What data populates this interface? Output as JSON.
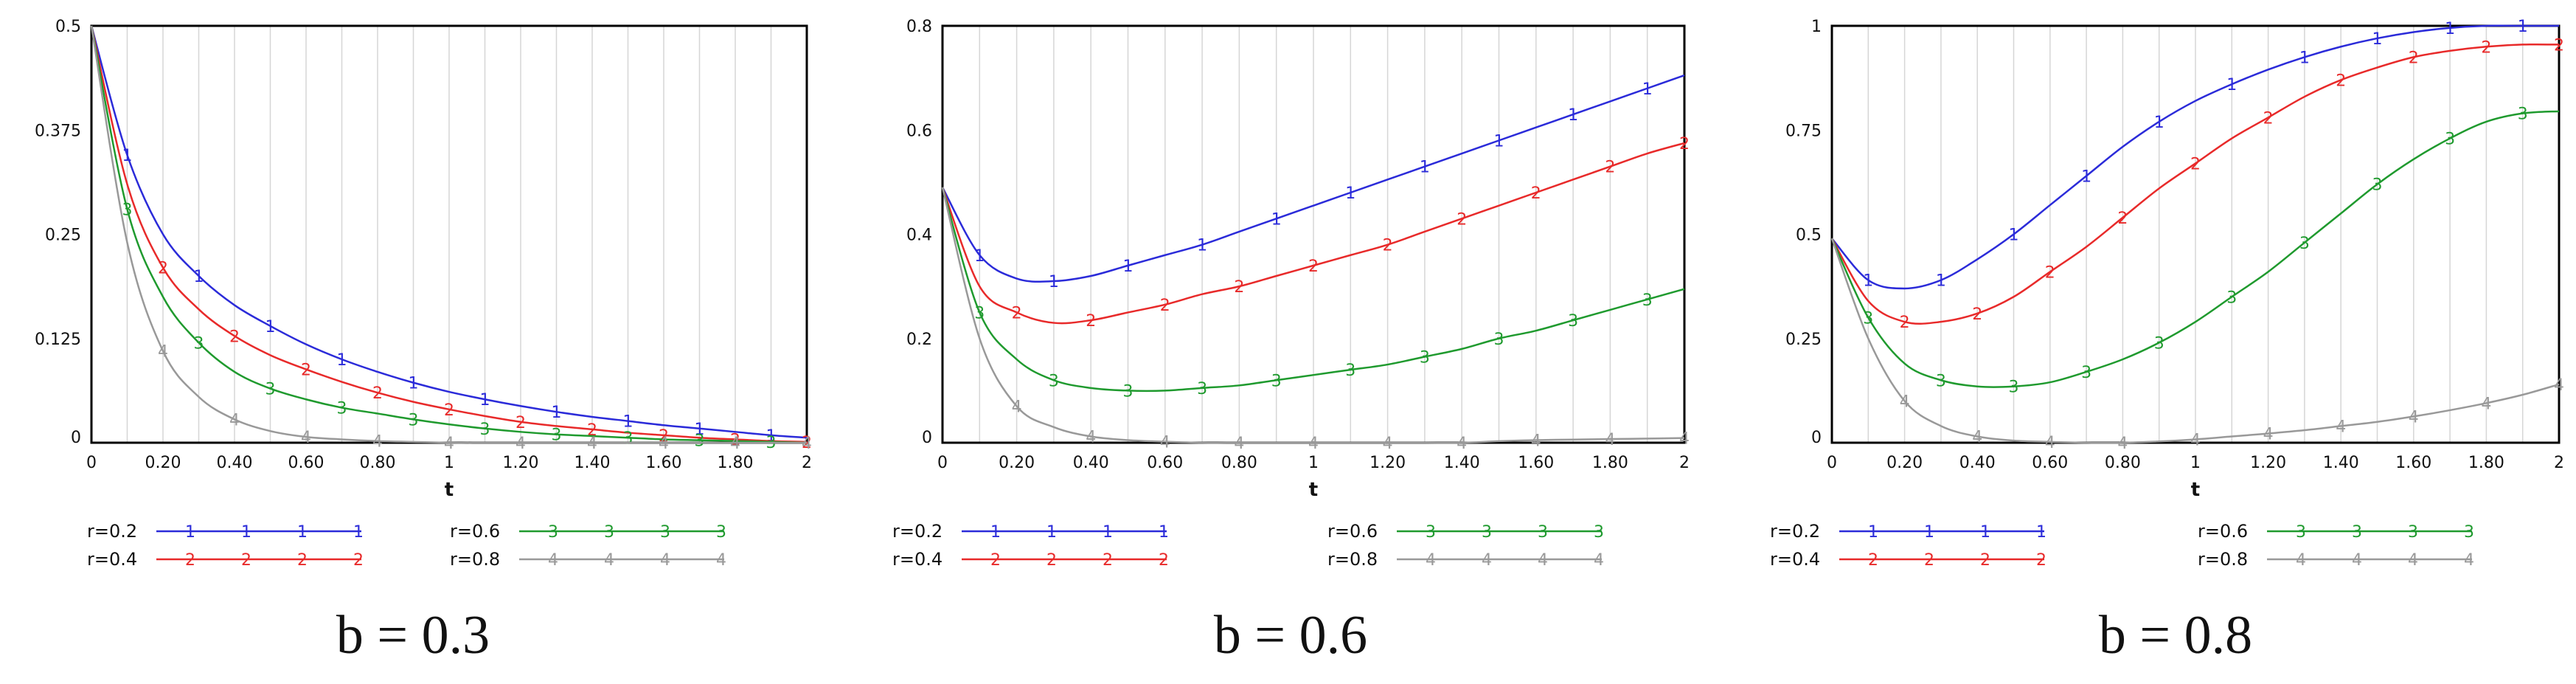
{
  "chart_data": [
    {
      "type": "line",
      "caption": "b = 0.3",
      "xlabel": "t",
      "xlim": [
        0,
        2
      ],
      "ylim": [
        0,
        0.5
      ],
      "x_ticks": [
        "0",
        "0.20",
        "0.40",
        "0.60",
        "0.80",
        "1",
        "1.20",
        "1.40",
        "1.60",
        "1.80",
        "2"
      ],
      "y_ticks": [
        "0",
        "0.125",
        "0.25",
        "0.375",
        "0.5"
      ],
      "x": [
        0,
        0.1,
        0.2,
        0.3,
        0.4,
        0.5,
        0.6,
        0.7,
        0.8,
        0.9,
        1.0,
        1.1,
        1.2,
        1.3,
        1.4,
        1.5,
        1.6,
        1.7,
        1.8,
        1.9,
        2.0
      ],
      "series": [
        {
          "name": "r=0.2",
          "marker": "1",
          "color": "#2b2bd9",
          "values": [
            0.5,
            0.345,
            0.25,
            0.2,
            0.165,
            0.14,
            0.118,
            0.1,
            0.085,
            0.072,
            0.061,
            0.052,
            0.044,
            0.037,
            0.031,
            0.026,
            0.021,
            0.017,
            0.013,
            0.009,
            0.006
          ]
        },
        {
          "name": "r=0.4",
          "marker": "2",
          "color": "#e82a2a",
          "values": [
            0.5,
            0.31,
            0.21,
            0.16,
            0.128,
            0.105,
            0.088,
            0.073,
            0.06,
            0.049,
            0.04,
            0.032,
            0.025,
            0.02,
            0.016,
            0.012,
            0.009,
            0.006,
            0.004,
            0.002,
            0.001
          ]
        },
        {
          "name": "r=0.6",
          "marker": "3",
          "color": "#1f9a2e",
          "values": [
            0.5,
            0.28,
            0.175,
            0.12,
            0.085,
            0.065,
            0.052,
            0.042,
            0.035,
            0.028,
            0.022,
            0.017,
            0.013,
            0.01,
            0.008,
            0.006,
            0.004,
            0.003,
            0.002,
            0.001,
            0.0
          ]
        },
        {
          "name": "r=0.8",
          "marker": "4",
          "color": "#999999",
          "values": [
            0.5,
            0.24,
            0.11,
            0.055,
            0.028,
            0.014,
            0.007,
            0.004,
            0.002,
            0.001,
            0.0,
            0.0,
            0.0,
            0.0,
            0.0,
            0.0,
            0.0,
            0.0,
            0.0,
            0.0,
            0.0
          ]
        }
      ]
    },
    {
      "type": "line",
      "caption": "b = 0.6",
      "xlabel": "t",
      "xlim": [
        0,
        2
      ],
      "ylim": [
        0,
        0.8
      ],
      "x_ticks": [
        "0",
        "0.20",
        "0.40",
        "0.60",
        "0.80",
        "1",
        "1.20",
        "1.40",
        "1.60",
        "1.80",
        "2"
      ],
      "y_ticks": [
        "0",
        "0.2",
        "0.4",
        "0.6",
        "0.8"
      ],
      "x": [
        0,
        0.1,
        0.2,
        0.3,
        0.4,
        0.5,
        0.6,
        0.7,
        0.8,
        0.9,
        1.0,
        1.1,
        1.2,
        1.3,
        1.4,
        1.5,
        1.6,
        1.7,
        1.8,
        1.9,
        2.0
      ],
      "series": [
        {
          "name": "r=0.2",
          "marker": "1",
          "color": "#2b2bd9",
          "values": [
            0.49,
            0.36,
            0.315,
            0.31,
            0.32,
            0.34,
            0.36,
            0.38,
            0.405,
            0.43,
            0.455,
            0.48,
            0.505,
            0.53,
            0.555,
            0.58,
            0.605,
            0.63,
            0.655,
            0.68,
            0.705
          ]
        },
        {
          "name": "r=0.4",
          "marker": "2",
          "color": "#e82a2a",
          "values": [
            0.49,
            0.3,
            0.25,
            0.23,
            0.235,
            0.25,
            0.265,
            0.285,
            0.3,
            0.32,
            0.34,
            0.36,
            0.38,
            0.405,
            0.43,
            0.455,
            0.48,
            0.505,
            0.53,
            0.555,
            0.575
          ]
        },
        {
          "name": "r=0.6",
          "marker": "3",
          "color": "#1f9a2e",
          "values": [
            0.49,
            0.25,
            0.16,
            0.12,
            0.105,
            0.1,
            0.1,
            0.105,
            0.11,
            0.12,
            0.13,
            0.14,
            0.15,
            0.165,
            0.18,
            0.2,
            0.215,
            0.235,
            0.255,
            0.275,
            0.295
          ]
        },
        {
          "name": "r=0.8",
          "marker": "4",
          "color": "#999999",
          "values": [
            0.49,
            0.2,
            0.07,
            0.03,
            0.012,
            0.005,
            0.002,
            0.0,
            0.0,
            0.0,
            0.0,
            0.0,
            0.0,
            0.0,
            0.0,
            0.003,
            0.005,
            0.006,
            0.007,
            0.008,
            0.009
          ]
        }
      ]
    },
    {
      "type": "line",
      "caption": "b = 0.8",
      "xlabel": "t",
      "xlim": [
        0,
        2
      ],
      "ylim": [
        0,
        1
      ],
      "x_ticks": [
        "0",
        "0.20",
        "0.40",
        "0.60",
        "0.80",
        "1",
        "1.20",
        "1.40",
        "1.60",
        "1.80",
        "2"
      ],
      "y_ticks": [
        "0",
        "0.25",
        "0.5",
        "0.75",
        "1"
      ],
      "x": [
        0,
        0.1,
        0.2,
        0.3,
        0.4,
        0.5,
        0.6,
        0.7,
        0.8,
        0.9,
        1.0,
        1.1,
        1.2,
        1.3,
        1.4,
        1.5,
        1.6,
        1.7,
        1.8,
        1.9,
        2.0
      ],
      "series": [
        {
          "name": "r=0.2",
          "marker": "1",
          "color": "#2b2bd9",
          "values": [
            0.49,
            0.39,
            0.37,
            0.39,
            0.44,
            0.5,
            0.57,
            0.64,
            0.71,
            0.77,
            0.82,
            0.86,
            0.895,
            0.925,
            0.95,
            0.97,
            0.985,
            0.995,
            1.0,
            1.0,
            1.0
          ]
        },
        {
          "name": "r=0.4",
          "marker": "2",
          "color": "#e82a2a",
          "values": [
            0.49,
            0.34,
            0.29,
            0.29,
            0.31,
            0.35,
            0.41,
            0.47,
            0.54,
            0.61,
            0.67,
            0.73,
            0.78,
            0.83,
            0.87,
            0.9,
            0.925,
            0.94,
            0.95,
            0.955,
            0.955
          ]
        },
        {
          "name": "r=0.6",
          "marker": "3",
          "color": "#1f9a2e",
          "values": [
            0.49,
            0.3,
            0.19,
            0.15,
            0.135,
            0.135,
            0.145,
            0.17,
            0.2,
            0.24,
            0.29,
            0.35,
            0.41,
            0.48,
            0.55,
            0.62,
            0.68,
            0.73,
            0.77,
            0.79,
            0.795
          ]
        },
        {
          "name": "r=0.8",
          "marker": "4",
          "color": "#999999",
          "values": [
            0.49,
            0.25,
            0.1,
            0.04,
            0.015,
            0.005,
            0.002,
            0.0,
            0.0,
            0.003,
            0.008,
            0.015,
            0.022,
            0.03,
            0.04,
            0.05,
            0.063,
            0.078,
            0.095,
            0.115,
            0.14
          ]
        }
      ]
    }
  ]
}
